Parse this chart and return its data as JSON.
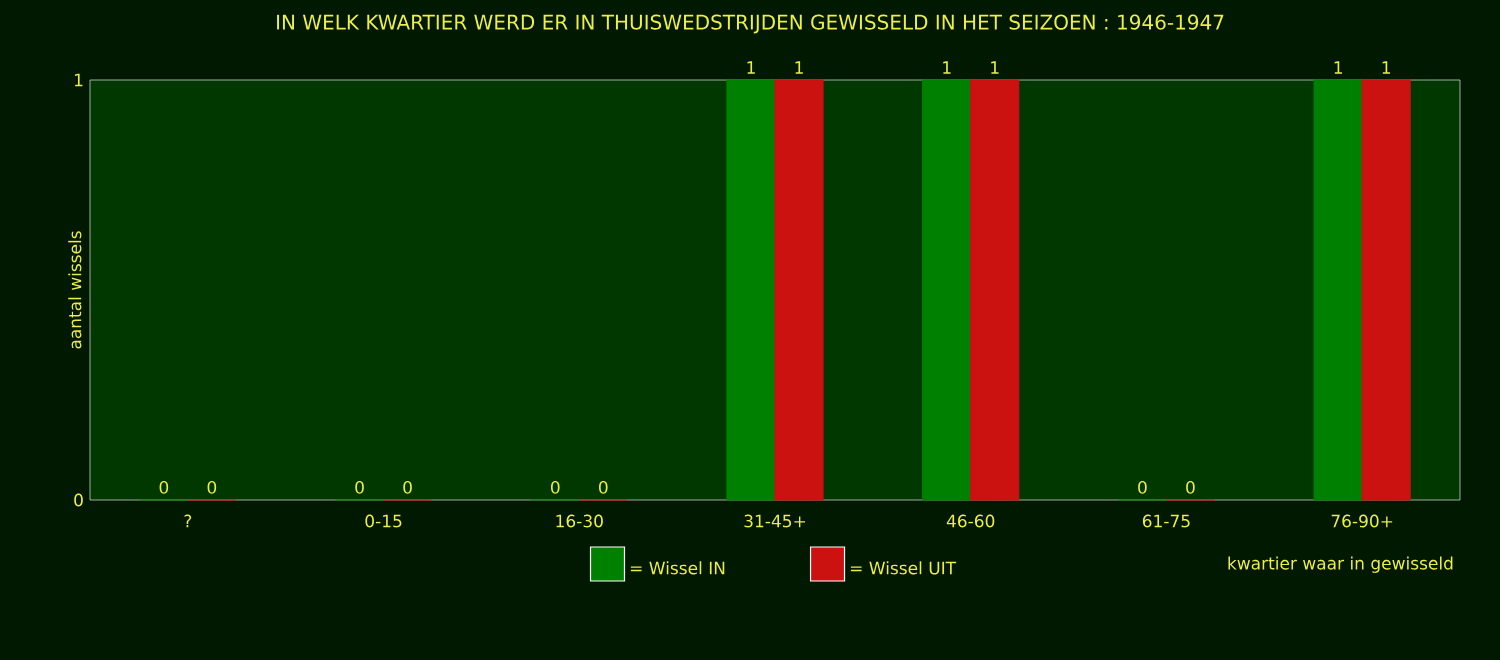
{
  "chart_data": {
    "type": "bar",
    "title": "IN WELK KWARTIER WERD ER IN THUISWEDSTRIJDEN GEWISSELD IN HET SEIZOEN : 1946-1947",
    "xlabel": "kwartier waar in gewisseld",
    "ylabel": "aantal wissels",
    "categories": [
      "?",
      "0-15",
      "16-30",
      "31-45+",
      "46-60",
      "61-75",
      "76-90+"
    ],
    "series": [
      {
        "name": "= Wissel IN",
        "color": "#008000",
        "values": [
          0,
          0,
          0,
          1,
          1,
          0,
          1
        ]
      },
      {
        "name": "= Wissel UIT",
        "color": "#cc1111",
        "values": [
          0,
          0,
          0,
          1,
          1,
          0,
          1
        ]
      }
    ],
    "ylim": [
      0,
      1
    ],
    "yticks": [
      0,
      1
    ],
    "data_labels": true,
    "legend": "bottom"
  }
}
